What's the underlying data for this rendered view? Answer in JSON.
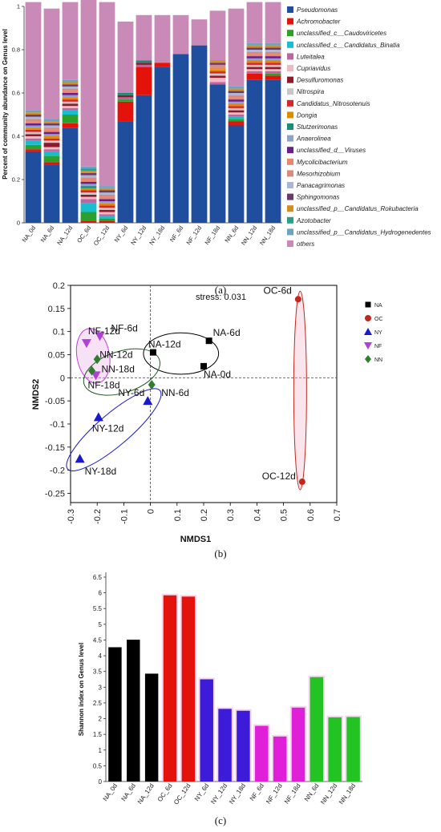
{
  "panel_a": {
    "caption": "(a)",
    "ylabel": "Percent of community abundance on Genus level",
    "yticks": [
      "0",
      "0.2",
      "0.4",
      "0.6",
      "0.8",
      "1"
    ],
    "chart_data": {
      "type": "bar",
      "stacked": true,
      "categories": [
        "NA_0d",
        "NA_6d",
        "NA_12d",
        "OC_6d",
        "OC_12d",
        "NY_6d",
        "NY_12d",
        "NY_18d",
        "NF_6d",
        "NF_12d",
        "NF_18d",
        "NN_6d",
        "NN_12d",
        "NN_18d"
      ],
      "ylim": [
        0,
        1
      ],
      "series": [
        {
          "name": "Pseudomonas",
          "color": "#1f4e9e",
          "values": [
            0.33,
            0.27,
            0.44,
            0.0,
            0.0,
            0.47,
            0.59,
            0.72,
            0.78,
            0.82,
            0.64,
            0.45,
            0.66,
            0.66
          ]
        },
        {
          "name": "Achromobacter",
          "color": "#e3120b",
          "values": [
            0.01,
            0.01,
            0.02,
            0.01,
            0.01,
            0.09,
            0.13,
            0.02,
            0.0,
            0.0,
            0.0,
            0.02,
            0.03,
            0.02
          ]
        },
        {
          "name": "unclassified_c__Caudoviricetes",
          "color": "#2ca02c",
          "values": [
            0.02,
            0.03,
            0.04,
            0.04,
            0.01,
            0.01,
            0.0,
            0.0,
            0.0,
            0.0,
            0.0,
            0.01,
            0.0,
            0.01
          ]
        },
        {
          "name": "unclassified_c__Candidatus_Binatia",
          "color": "#17becf",
          "values": [
            0.02,
            0.02,
            0.02,
            0.04,
            0.01,
            0.0,
            0.0,
            0.0,
            0.0,
            0.0,
            0.0,
            0.01,
            0.0,
            0.0
          ]
        },
        {
          "name": "Luteitalea",
          "color": "#b768a2",
          "values": [
            0.01,
            0.01,
            0.01,
            0.02,
            0.01,
            0.01,
            0.01,
            0.0,
            0.0,
            0.0,
            0.01,
            0.01,
            0.01,
            0.01
          ]
        },
        {
          "name": "Cupriavidus",
          "color": "#f4b6c2",
          "values": [
            0.01,
            0.01,
            0.01,
            0.01,
            0.01,
            0.0,
            0.0,
            0.0,
            0.0,
            0.0,
            0.02,
            0.01,
            0.01,
            0.01
          ]
        },
        {
          "name": "Desulfuromonas",
          "color": "#8c1a2b",
          "values": [
            0.01,
            0.02,
            0.01,
            0.01,
            0.01,
            0.01,
            0.01,
            0.0,
            0.0,
            0.0,
            0.01,
            0.01,
            0.01,
            0.01
          ]
        },
        {
          "name": "Nitrospira",
          "color": "#c7c7c7",
          "values": [
            0.01,
            0.01,
            0.01,
            0.01,
            0.01,
            0.0,
            0.0,
            0.0,
            0.0,
            0.0,
            0.01,
            0.01,
            0.01,
            0.01
          ]
        },
        {
          "name": "Candidatus_Nitrosotenuis",
          "color": "#d62728",
          "values": [
            0.01,
            0.01,
            0.01,
            0.01,
            0.01,
            0.0,
            0.0,
            0.0,
            0.0,
            0.0,
            0.01,
            0.01,
            0.01,
            0.01
          ]
        },
        {
          "name": "Dongia",
          "color": "#e08a00",
          "values": [
            0.01,
            0.01,
            0.01,
            0.01,
            0.01,
            0.0,
            0.0,
            0.0,
            0.0,
            0.0,
            0.01,
            0.01,
            0.01,
            0.01
          ]
        },
        {
          "name": "Stutzerimonas",
          "color": "#1a8c7a",
          "values": [
            0.0,
            0.0,
            0.0,
            0.01,
            0.0,
            0.01,
            0.01,
            0.0,
            0.0,
            0.0,
            0.0,
            0.0,
            0.0,
            0.0
          ]
        },
        {
          "name": "Anaerolinea",
          "color": "#8fa3c9",
          "values": [
            0.01,
            0.01,
            0.01,
            0.01,
            0.01,
            0.0,
            0.0,
            0.0,
            0.0,
            0.0,
            0.0,
            0.01,
            0.01,
            0.01
          ]
        },
        {
          "name": "unclassified_d__Viruses",
          "color": "#6a1f8a",
          "values": [
            0.01,
            0.01,
            0.01,
            0.01,
            0.01,
            0.0,
            0.0,
            0.0,
            0.0,
            0.0,
            0.0,
            0.01,
            0.01,
            0.01
          ]
        },
        {
          "name": "Mycolicibacterium",
          "color": "#e9876a",
          "values": [
            0.01,
            0.01,
            0.01,
            0.01,
            0.01,
            0.0,
            0.0,
            0.0,
            0.0,
            0.0,
            0.01,
            0.01,
            0.01,
            0.01
          ]
        },
        {
          "name": "Mesorhizobium",
          "color": "#d98a7a",
          "values": [
            0.01,
            0.01,
            0.01,
            0.01,
            0.01,
            0.0,
            0.0,
            0.0,
            0.0,
            0.0,
            0.01,
            0.01,
            0.01,
            0.01
          ]
        },
        {
          "name": "Panacagrimonas",
          "color": "#a9b7d6",
          "values": [
            0.01,
            0.01,
            0.01,
            0.01,
            0.01,
            0.0,
            0.0,
            0.0,
            0.0,
            0.0,
            0.0,
            0.01,
            0.01,
            0.01
          ]
        },
        {
          "name": "Sphingomonas",
          "color": "#6b3a6b",
          "values": [
            0.01,
            0.01,
            0.01,
            0.01,
            0.01,
            0.0,
            0.0,
            0.0,
            0.0,
            0.0,
            0.01,
            0.01,
            0.01,
            0.01
          ]
        },
        {
          "name": "unclassified_p__Candidatus_Rokubacteria",
          "color": "#d98c1e",
          "values": [
            0.01,
            0.01,
            0.01,
            0.01,
            0.01,
            0.0,
            0.0,
            0.0,
            0.0,
            0.0,
            0.01,
            0.01,
            0.01,
            0.01
          ]
        },
        {
          "name": "Azotobacter",
          "color": "#2e9e8a",
          "values": [
            0.0,
            0.0,
            0.0,
            0.01,
            0.0,
            0.0,
            0.0,
            0.0,
            0.0,
            0.0,
            0.0,
            0.0,
            0.0,
            0.0
          ]
        },
        {
          "name": "unclassified_p__Candidatus_Hydrogenedentes",
          "color": "#6ba3c4",
          "values": [
            0.01,
            0.01,
            0.01,
            0.01,
            0.01,
            0.0,
            0.0,
            0.0,
            0.0,
            0.0,
            0.0,
            0.01,
            0.01,
            0.01
          ]
        },
        {
          "name": "others",
          "color": "#c98ab8",
          "values": [
            0.5,
            0.51,
            0.36,
            0.77,
            0.85,
            0.33,
            0.21,
            0.22,
            0.18,
            0.12,
            0.23,
            0.36,
            0.19,
            0.19
          ]
        }
      ]
    }
  },
  "panel_b": {
    "caption": "(b)",
    "xlabel": "NMDS1",
    "ylabel": "NMDS2",
    "stress": "stress: 0.031",
    "xticks": [
      "-0.3",
      "-0.2",
      "-0.1",
      "0",
      "0.1",
      "0.2",
      "0.3",
      "0.4",
      "0.5",
      "0.6",
      "0.7"
    ],
    "yticks": [
      "0.2",
      "0.15",
      "0.1",
      "0.05",
      "0",
      "-0.05",
      "-0.1",
      "-0.15",
      "-0.2",
      "-0.25"
    ],
    "chart_data": {
      "type": "scatter",
      "xlim": [
        -0.3,
        0.7
      ],
      "ylim": [
        -0.27,
        0.2
      ],
      "groups": [
        {
          "name": "NA",
          "color": "#000000",
          "marker": "square"
        },
        {
          "name": "OC",
          "color": "#c0281e",
          "marker": "circle"
        },
        {
          "name": "NY",
          "color": "#1a1acc",
          "marker": "triangle-up"
        },
        {
          "name": "NF",
          "color": "#b040d8",
          "marker": "triangle-down"
        },
        {
          "name": "NN",
          "color": "#2f7d2f",
          "marker": "diamond"
        }
      ],
      "points": [
        {
          "label": "NA-0d",
          "group": "NA",
          "x": 0.2,
          "y": 0.025
        },
        {
          "label": "NA-6d",
          "group": "NA",
          "x": 0.22,
          "y": 0.08
        },
        {
          "label": "NA-12d",
          "group": "NA",
          "x": 0.01,
          "y": 0.055
        },
        {
          "label": "OC-6d",
          "group": "OC",
          "x": 0.555,
          "y": 0.17
        },
        {
          "label": "OC-12d",
          "group": "OC",
          "x": 0.57,
          "y": -0.225
        },
        {
          "label": "NY-6d",
          "group": "NY",
          "x": -0.01,
          "y": -0.05
        },
        {
          "label": "NY-12d",
          "group": "NY",
          "x": -0.195,
          "y": -0.085
        },
        {
          "label": "NY-18d",
          "group": "NY",
          "x": -0.265,
          "y": -0.175
        },
        {
          "label": "NF-6d",
          "group": "NF",
          "x": -0.19,
          "y": 0.09
        },
        {
          "label": "NF-12d",
          "group": "NF",
          "x": -0.24,
          "y": 0.075
        },
        {
          "label": "NF-18d",
          "group": "NF",
          "x": -0.205,
          "y": 0.005
        },
        {
          "label": "NN-6d",
          "group": "NN",
          "x": 0.005,
          "y": -0.015
        },
        {
          "label": "NN-12d",
          "group": "NN",
          "x": -0.2,
          "y": 0.04
        },
        {
          "label": "NN-18d",
          "group": "NN",
          "x": -0.22,
          "y": 0.015
        }
      ]
    }
  },
  "panel_c": {
    "caption": "(c)",
    "ylabel": "Shannon index on Genus level",
    "yticks": [
      "0",
      "0.5",
      "1",
      "1.5",
      "2",
      "2.5",
      "3",
      "3.5",
      "4",
      "4.5",
      "5",
      "5.5",
      "6",
      "6.5"
    ],
    "chart_data": {
      "type": "bar",
      "ylim": [
        0,
        6.5
      ],
      "categories": [
        "NA_0d",
        "NA_6d",
        "NA_12d",
        "OC_6d",
        "OC_12d",
        "NY_6d",
        "NY_12d",
        "NY_18d",
        "NF_6d",
        "NF_12d",
        "NF_18d",
        "NN_6d",
        "NN_12d",
        "NN_18d"
      ],
      "values": [
        4.27,
        4.51,
        3.43,
        5.92,
        5.88,
        3.25,
        2.31,
        2.25,
        1.77,
        1.43,
        2.35,
        3.32,
        2.04,
        2.05
      ],
      "colors": [
        "#000000",
        "#000000",
        "#000000",
        "#e3120b",
        "#e3120b",
        "#3d1cd9",
        "#3d1cd9",
        "#3d1cd9",
        "#e020d8",
        "#e020d8",
        "#e020d8",
        "#22c322",
        "#22c322",
        "#22c322"
      ]
    }
  }
}
